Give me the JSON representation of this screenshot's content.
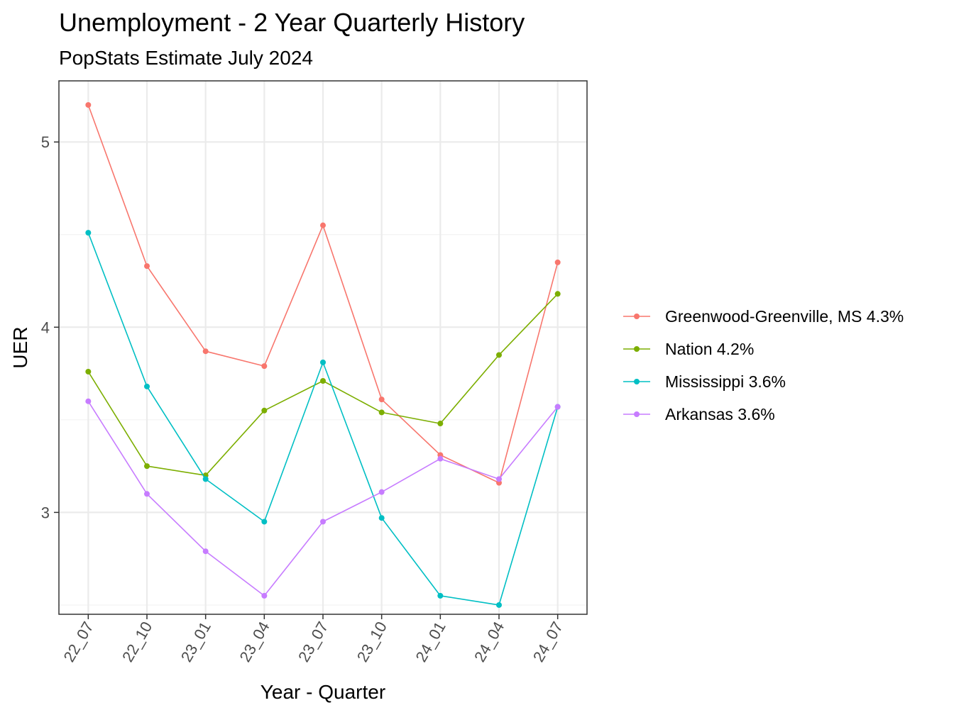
{
  "chart_data": {
    "type": "line",
    "title": "Unemployment - 2 Year Quarterly History",
    "subtitle": "PopStats Estimate July 2024",
    "xlabel": "Year - Quarter",
    "ylabel": "UER",
    "categories": [
      "22_07",
      "22_10",
      "23_01",
      "23_04",
      "23_07",
      "23_10",
      "24_01",
      "24_04",
      "24_07"
    ],
    "ylim": [
      2.45,
      5.33
    ],
    "yticks": [
      3,
      4,
      5
    ],
    "grid": true,
    "legend_position": "right",
    "series": [
      {
        "name": "Greenwood-Greenville, MS 4.3%",
        "color": "#F8766D",
        "values": [
          5.2,
          4.33,
          3.87,
          3.79,
          4.55,
          3.61,
          3.31,
          3.16,
          4.35
        ]
      },
      {
        "name": "Nation 4.2%",
        "color": "#7CAE00",
        "values": [
          3.76,
          3.25,
          3.2,
          3.55,
          3.71,
          3.54,
          3.48,
          3.85,
          4.18
        ]
      },
      {
        "name": "Mississippi 3.6%",
        "color": "#00BFC4",
        "values": [
          4.51,
          3.68,
          3.18,
          2.95,
          3.81,
          2.97,
          2.55,
          2.5,
          3.57
        ]
      },
      {
        "name": "Arkansas 3.6%",
        "color": "#C77CFF",
        "values": [
          3.6,
          3.1,
          2.79,
          2.55,
          2.95,
          3.11,
          3.29,
          3.18,
          3.57
        ]
      }
    ]
  }
}
